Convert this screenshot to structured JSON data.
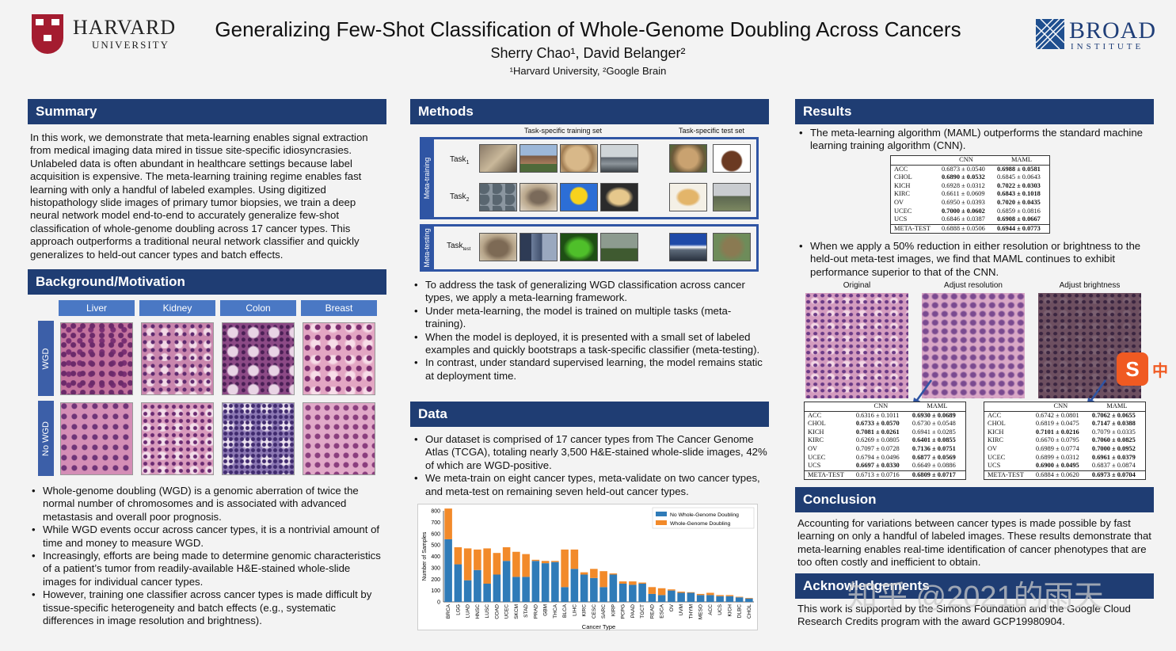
{
  "header": {
    "title": "Generalizing Few-Shot Classification of Whole-Genome Doubling Across Cancers",
    "authors": "Sherry Chao¹, David Belanger²",
    "affiliations": "¹Harvard University, ²Google Brain",
    "harvard_name": "HARVARD",
    "harvard_sub": "UNIVERSITY",
    "broad_name": "BROAD",
    "broad_sub": "INSTITUTE"
  },
  "summary": {
    "heading": "Summary",
    "text": "In this work, we demonstrate that meta-learning enables signal extraction from medical imaging data mired in tissue site-specific idiosyncrasies. Unlabeled data is often abundant in healthcare settings because label acquisition is expensive. The meta-learning training regime enables fast learning with only a handful of labeled examples. Using digitized histopathology slide images of primary tumor biopsies, we train a deep neural network model end-to-end to accurately generalize few-shot classification of whole-genome doubling across 17 cancer types. This approach outperforms a traditional neural network classifier and quickly generalizes to held-out cancer types and batch effects."
  },
  "background": {
    "heading": "Background/Motivation",
    "tissues": [
      "Liver",
      "Kidney",
      "Colon",
      "Breast"
    ],
    "rows": [
      "WGD",
      "No WGD"
    ],
    "bullets": [
      "Whole-genome doubling (WGD) is a genomic aberration of twice the normal number of chromosomes and is associated with advanced metastasis and overall poor prognosis.",
      "While WGD events occur across cancer types, it is a nontrivial amount of time and money to measure WGD.",
      "Increasingly, efforts are being made to determine genomic characteristics of a patient’s tumor from readily-available H&E-stained whole-slide images for individual cancer types.",
      "However, training one classifier across cancer types is made difficult by tissue-specific heterogeneity and batch effects (e.g., systematic differences in image resolution and brightness)."
    ]
  },
  "methods": {
    "heading": "Methods",
    "train_set_label": "Task-specific training set",
    "test_set_label": "Task-specific test set",
    "meta_training": "Meta-training",
    "meta_testing": "Meta-testing",
    "task1": "Task",
    "task1_sub": "1",
    "task2": "Task",
    "task2_sub": "2",
    "tasktest": "Task",
    "tasktest_sub": "test",
    "bullets": [
      "To address the task of generalizing WGD classification across cancer types, we apply a meta-learning framework.",
      "Under meta-learning, the model is trained on multiple tasks (meta-training).",
      "When the model is deployed, it is presented with a small set of labeled examples and quickly bootstraps a task-specific classifier (meta-testing).",
      "In contrast, under standard supervised learning, the model remains static at deployment time."
    ]
  },
  "data": {
    "heading": "Data",
    "bullets": [
      "Our dataset is comprised of 17 cancer types from The Cancer Genome Atlas (TCGA), totaling nearly 3,500 H&E-stained whole-slide images, 42% of which are WGD-positive.",
      "We meta-train on eight cancer types, meta-validate on two cancer types, and meta-test on remaining seven held-out cancer types."
    ]
  },
  "chart_data": {
    "type": "bar",
    "stacked": true,
    "xlabel": "Cancer Type",
    "ylabel": "Number of Samples",
    "ylim": [
      0,
      800
    ],
    "yticks": [
      0,
      100,
      200,
      300,
      400,
      500,
      600,
      700,
      800
    ],
    "legend_position": "top-right",
    "categories": [
      "BRCA",
      "LGG",
      "LUAD",
      "HNSC",
      "LUSC",
      "COAD",
      "UCEC",
      "SKCM",
      "STAD",
      "PRAD",
      "GBM",
      "THCA",
      "BLCA",
      "LIHC",
      "KIRC",
      "CESC",
      "SARC",
      "KIRP",
      "PCPG",
      "PAAD",
      "TGCT",
      "READ",
      "ESCA",
      "OV",
      "UVM",
      "THYM",
      "MESO",
      "ACC",
      "UCS",
      "KICH",
      "DLBC",
      "CHOL"
    ],
    "series": [
      {
        "name": "No Whole-Genome Doubling",
        "color": "#2f7bb8",
        "values": [
          550,
          330,
          190,
          280,
          160,
          240,
          360,
          220,
          220,
          360,
          340,
          350,
          130,
          290,
          240,
          210,
          130,
          240,
          160,
          150,
          160,
          70,
          60,
          100,
          80,
          80,
          60,
          60,
          50,
          50,
          40,
          30
        ]
      },
      {
        "name": "Whole-Genome Doubling",
        "color": "#f28a2a",
        "values": [
          270,
          150,
          280,
          180,
          310,
          190,
          120,
          220,
          200,
          10,
          20,
          10,
          330,
          170,
          20,
          80,
          140,
          10,
          20,
          30,
          10,
          60,
          60,
          10,
          10,
          5,
          10,
          20,
          10,
          10,
          5,
          5
        ]
      }
    ]
  },
  "results": {
    "heading": "Results",
    "bullet1": "The meta-learning algorithm (MAML) outperforms the standard machine learning training algorithm (CNN).",
    "bullet2": "When we apply a 50% reduction in either resolution or brightness to the held-out meta-test images, we find that MAML continues to exhibit performance superior to that of the CNN.",
    "img_labels": [
      "Original",
      "Adjust resolution",
      "Adjust brightness"
    ],
    "table_cols": [
      "CNN",
      "MAML"
    ],
    "table_main": [
      [
        "ACC",
        "0.6873 ± 0.0540",
        "0.6988 ± 0.0581",
        "m"
      ],
      [
        "CHOL",
        "0.6890 ± 0.0532",
        "0.6845 ± 0.0643",
        "c"
      ],
      [
        "KICH",
        "0.6928 ± 0.0312",
        "0.7022 ± 0.0303",
        "m"
      ],
      [
        "KIRC",
        "0.6611 ± 0.0609",
        "0.6843 ± 0.1018",
        "m"
      ],
      [
        "OV",
        "0.6950 ± 0.0393",
        "0.7020 ± 0.0435",
        "m"
      ],
      [
        "UCEC",
        "0.7000 ± 0.0602",
        "0.6859 ± 0.0816",
        "c"
      ],
      [
        "UCS",
        "0.6846 ± 0.0387",
        "0.6908 ± 0.0667",
        "m"
      ],
      [
        "META-TEST",
        "0.6888 ± 0.0506",
        "0.6944 ± 0.0773",
        "m"
      ]
    ],
    "table_res": [
      [
        "ACC",
        "0.6316 ± 0.1011",
        "0.6930 ± 0.0689",
        "m"
      ],
      [
        "CHOL",
        "0.6733 ± 0.0570",
        "0.6730 ± 0.0548",
        "c"
      ],
      [
        "KICH",
        "0.7081 ± 0.0261",
        "0.6941 ± 0.0285",
        "c"
      ],
      [
        "KIRC",
        "0.6269 ± 0.0805",
        "0.6401 ± 0.0855",
        "m"
      ],
      [
        "OV",
        "0.7097 ± 0.0728",
        "0.7136 ± 0.0751",
        "m"
      ],
      [
        "UCEC",
        "0.6794 ± 0.0496",
        "0.6877 ± 0.0569",
        "m"
      ],
      [
        "UCS",
        "0.6697 ± 0.0330",
        "0.6649 ± 0.0886",
        "c"
      ],
      [
        "META-TEST",
        "0.6713 ± 0.0716",
        "0.6809 ± 0.0717",
        "m"
      ]
    ],
    "table_bri": [
      [
        "ACC",
        "0.6742 ± 0.0801",
        "0.7062 ± 0.0655",
        "m"
      ],
      [
        "CHOL",
        "0.6819 ± 0.0475",
        "0.7147 ± 0.0388",
        "m"
      ],
      [
        "KICH",
        "0.7101 ± 0.0216",
        "0.7079 ± 0.0335",
        "c"
      ],
      [
        "KIRC",
        "0.6670 ± 0.0795",
        "0.7060 ± 0.0825",
        "m"
      ],
      [
        "OV",
        "0.6989 ± 0.0774",
        "0.7000 ± 0.0952",
        "m"
      ],
      [
        "UCEC",
        "0.6899 ± 0.0312",
        "0.6961 ± 0.0379",
        "m"
      ],
      [
        "UCS",
        "0.6900 ± 0.0495",
        "0.6837 ± 0.0874",
        "c"
      ],
      [
        "META-TEST",
        "0.6884 ± 0.0620",
        "0.6973 ± 0.0704",
        "m"
      ]
    ]
  },
  "conclusion": {
    "heading": "Conclusion",
    "text": "Accounting for variations between cancer types is made possible by fast learning on only a handful of labeled images. These results demonstrate that meta-learning enables real-time identification of cancer phenotypes that are too often costly and inefficient to obtain."
  },
  "ack": {
    "heading": "Acknowledgements",
    "text": "This work is supported by the Simons Foundation and the Google Cloud Research Credits program with the award GCP19980904."
  },
  "overlay": {
    "watermark": "知乎 @2021的雨天",
    "ime_icon": "S",
    "ime_text": "中"
  }
}
